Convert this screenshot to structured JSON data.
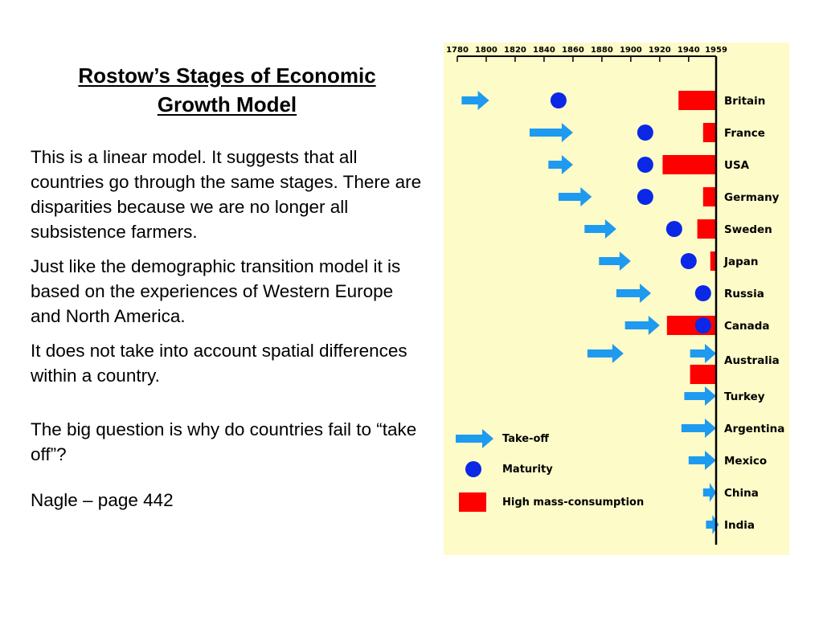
{
  "slide": {
    "title_line1": "Rostow’s Stages of Economic",
    "title_line2": "Growth Model",
    "paragraphs": [
      "This is a linear model. It suggests that all countries go through the same stages. There are disparities because we are no longer all subsistence farmers.",
      "Just like the demographic transition model it is based on the experiences of Western Europe and North America.",
      "It does not take into account spatial differences within a country.",
      "The big question is why do countries fail to “take off”?",
      "Nagle – page 442"
    ]
  },
  "chart_data": {
    "type": "timeline",
    "title": "",
    "x_ticks": [
      1780,
      1800,
      1820,
      1840,
      1860,
      1880,
      1900,
      1920,
      1940,
      1959
    ],
    "x_range": [
      1780,
      1959
    ],
    "colors": {
      "takeoff": "#1e9af0",
      "maturity": "#0a28e6",
      "consumption": "#ff0000",
      "background": "#fdfbc8"
    },
    "legend": [
      {
        "key": "takeoff",
        "label": "Take-off",
        "icon": "arrow"
      },
      {
        "key": "maturity",
        "label": "Maturity",
        "icon": "circle"
      },
      {
        "key": "consumption",
        "label": "High mass-consumption",
        "icon": "rect"
      }
    ],
    "countries": [
      {
        "name": "Britain",
        "takeoff": [
          1783,
          1802
        ],
        "maturity": 1850,
        "consumption": [
          1933,
          1959
        ]
      },
      {
        "name": "France",
        "takeoff": [
          1830,
          1860
        ],
        "maturity": 1910,
        "consumption": [
          1950,
          1959
        ]
      },
      {
        "name": "USA",
        "takeoff": [
          1843,
          1860
        ],
        "maturity": 1910,
        "consumption": [
          1922,
          1959
        ]
      },
      {
        "name": "Germany",
        "takeoff": [
          1850,
          1873
        ],
        "maturity": 1910,
        "consumption": [
          1950,
          1959
        ]
      },
      {
        "name": "Sweden",
        "takeoff": [
          1868,
          1890
        ],
        "maturity": 1930,
        "consumption": [
          1946,
          1959
        ]
      },
      {
        "name": "Japan",
        "takeoff": [
          1878,
          1900
        ],
        "maturity": 1940,
        "consumption": [
          1955,
          1959
        ]
      },
      {
        "name": "Russia",
        "takeoff": [
          1890,
          1914
        ],
        "maturity": 1950,
        "consumption": null
      },
      {
        "name": "Canada",
        "takeoff": [
          1896,
          1920
        ],
        "maturity": 1950,
        "consumption": [
          1925,
          1959
        ]
      },
      {
        "name": "Australia",
        "takeoff": [
          1870,
          1895
        ],
        "takeoff2": [
          1941,
          1959
        ],
        "maturity": null,
        "consumption": [
          1941,
          1959
        ]
      },
      {
        "name": "Turkey",
        "takeoff": [
          1937,
          1959
        ],
        "maturity": null,
        "consumption": null
      },
      {
        "name": "Argentina",
        "takeoff": [
          1935,
          1959
        ],
        "maturity": null,
        "consumption": null
      },
      {
        "name": "Mexico",
        "takeoff": [
          1940,
          1959
        ],
        "maturity": null,
        "consumption": null
      },
      {
        "name": "China",
        "takeoff": [
          1950,
          1959
        ],
        "maturity": null,
        "consumption": null
      },
      {
        "name": "India",
        "takeoff": [
          1952,
          1959
        ],
        "maturity": null,
        "consumption": null
      }
    ]
  }
}
